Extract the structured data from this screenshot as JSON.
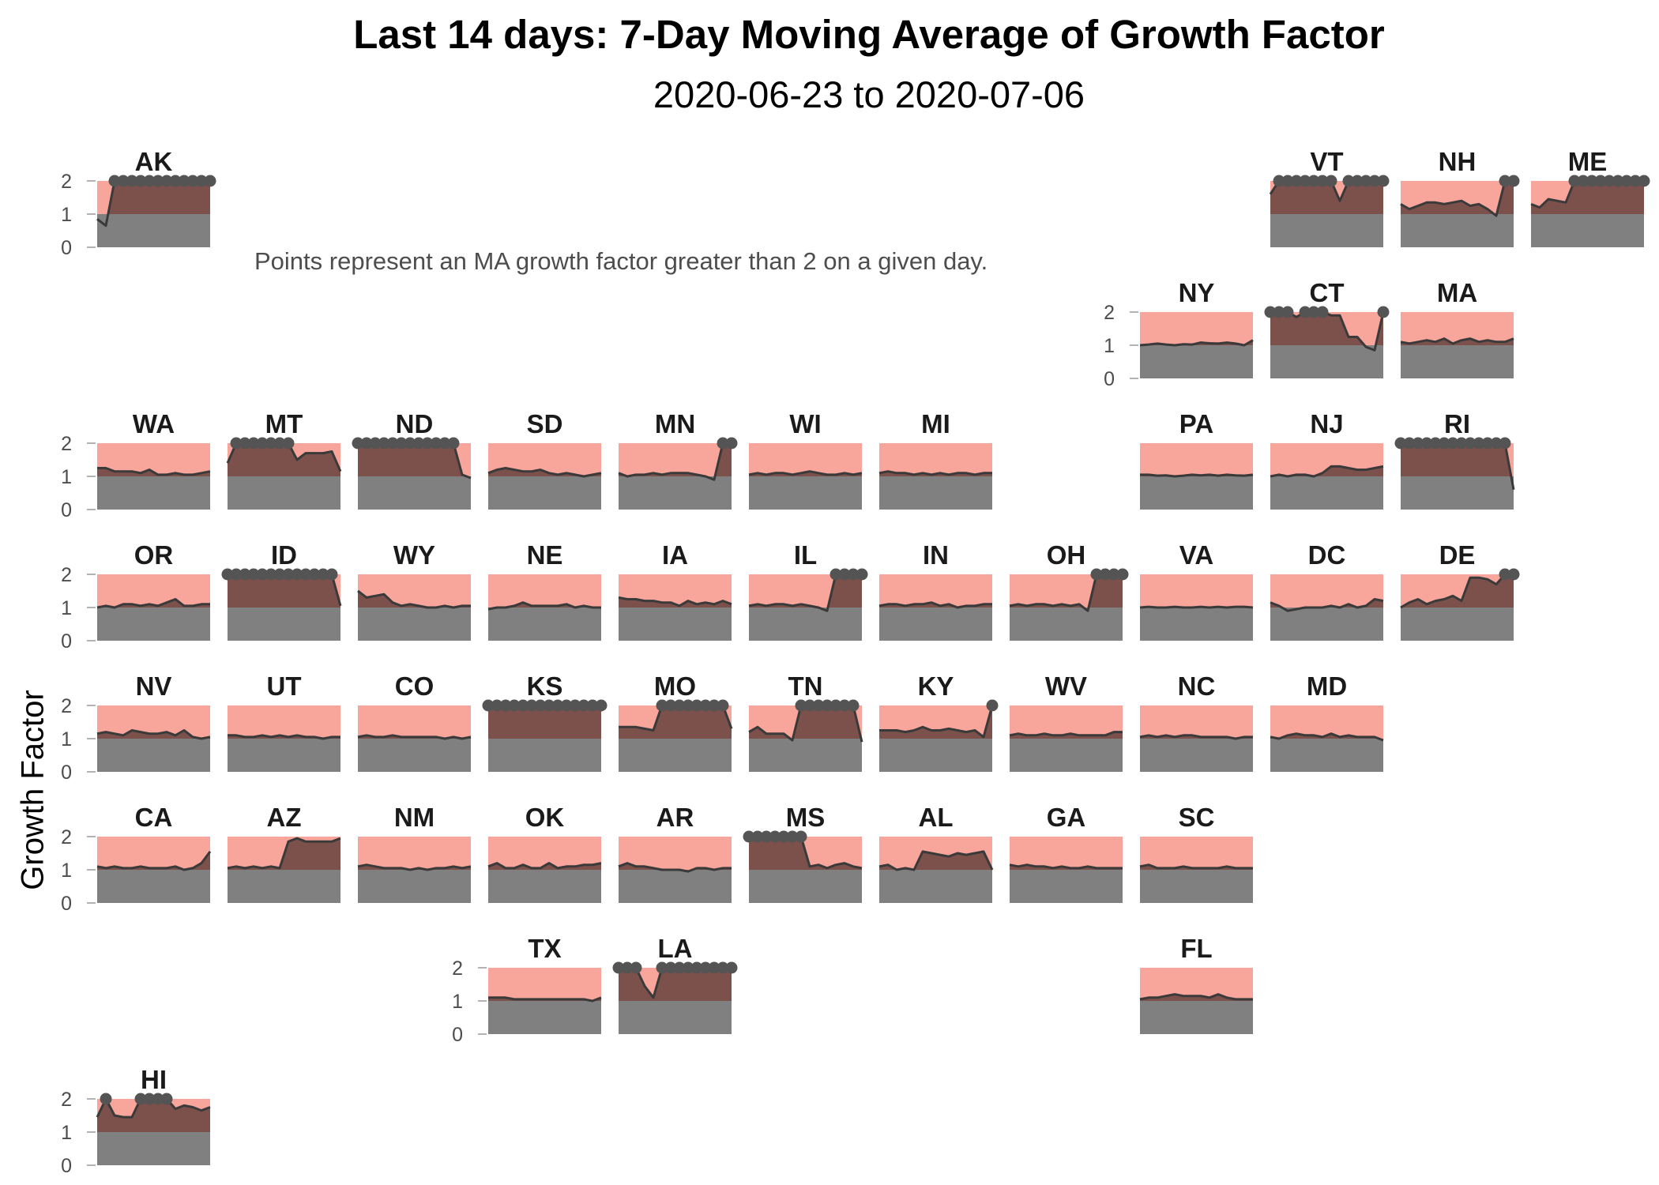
{
  "chart_data": {
    "type": "area",
    "title": "Last 14 days: 7-Day Moving Average of Growth Factor",
    "subtitle": "2020-06-23 to 2020-07-06",
    "note": "Points represent an MA growth factor greater than 2 on a given day.",
    "ylabel": "Growth Factor",
    "ylim": [
      0,
      2
    ],
    "yticks": [
      0,
      1,
      2
    ],
    "threshold": 1,
    "point_threshold": 2,
    "days": 14,
    "colors": {
      "above_threshold_band": "#f8a59b",
      "below_threshold_band": "#808080",
      "area_above_band": "#7c514c",
      "line": "#3a3a3a",
      "point": "#545454",
      "axis_text": "#4d4d4d"
    },
    "panels": [
      {
        "state": "AK",
        "row": 0,
        "col": 0,
        "values": [
          0.85,
          0.65,
          2,
          2,
          2,
          2,
          2,
          2,
          2,
          2,
          2,
          2,
          2,
          2
        ]
      },
      {
        "state": "VT",
        "row": 0,
        "col": 9,
        "values": [
          1.6,
          2,
          2,
          2,
          2,
          2,
          2,
          2,
          1.4,
          2,
          2,
          2,
          2,
          2
        ]
      },
      {
        "state": "NH",
        "row": 0,
        "col": 10,
        "values": [
          1.3,
          1.15,
          1.25,
          1.35,
          1.35,
          1.3,
          1.35,
          1.4,
          1.25,
          1.3,
          1.15,
          0.95,
          2,
          2
        ]
      },
      {
        "state": "ME",
        "row": 0,
        "col": 11,
        "values": [
          1.3,
          1.2,
          1.45,
          1.4,
          1.35,
          2,
          2,
          2,
          2,
          2,
          2,
          2,
          2,
          2
        ]
      },
      {
        "state": "NY",
        "row": 1,
        "col": 8,
        "values": [
          1.0,
          1.02,
          1.05,
          1.02,
          1.0,
          1.03,
          1.02,
          1.08,
          1.06,
          1.05,
          1.08,
          1.05,
          1.0,
          1.15
        ]
      },
      {
        "state": "CT",
        "row": 1,
        "col": 9,
        "values": [
          2,
          2,
          2,
          1.85,
          2,
          2,
          2,
          1.9,
          1.9,
          1.25,
          1.25,
          0.95,
          0.85,
          2
        ]
      },
      {
        "state": "MA",
        "row": 1,
        "col": 10,
        "values": [
          1.1,
          1.05,
          1.1,
          1.15,
          1.1,
          1.2,
          1.05,
          1.15,
          1.2,
          1.1,
          1.15,
          1.1,
          1.1,
          1.2
        ]
      },
      {
        "state": "WA",
        "row": 2,
        "col": 0,
        "values": [
          1.25,
          1.25,
          1.15,
          1.15,
          1.15,
          1.1,
          1.2,
          1.05,
          1.05,
          1.1,
          1.05,
          1.05,
          1.1,
          1.15
        ]
      },
      {
        "state": "MT",
        "row": 2,
        "col": 1,
        "values": [
          1.4,
          2,
          2,
          2,
          2,
          2,
          2,
          2,
          1.5,
          1.7,
          1.7,
          1.7,
          1.75,
          1.15
        ]
      },
      {
        "state": "ND",
        "row": 2,
        "col": 2,
        "values": [
          2,
          2,
          2,
          2,
          2,
          2,
          2,
          2,
          2,
          2,
          2,
          2,
          1.05,
          0.95
        ]
      },
      {
        "state": "SD",
        "row": 2,
        "col": 3,
        "values": [
          1.1,
          1.2,
          1.25,
          1.2,
          1.15,
          1.15,
          1.2,
          1.1,
          1.05,
          1.1,
          1.05,
          1.0,
          1.05,
          1.1
        ]
      },
      {
        "state": "MN",
        "row": 2,
        "col": 4,
        "values": [
          1.1,
          1.0,
          1.05,
          1.05,
          1.1,
          1.05,
          1.1,
          1.1,
          1.1,
          1.05,
          1.0,
          0.9,
          2,
          2
        ]
      },
      {
        "state": "WI",
        "row": 2,
        "col": 5,
        "values": [
          1.05,
          1.1,
          1.05,
          1.1,
          1.1,
          1.05,
          1.1,
          1.15,
          1.1,
          1.05,
          1.05,
          1.1,
          1.05,
          1.1
        ]
      },
      {
        "state": "MI",
        "row": 2,
        "col": 6,
        "values": [
          1.1,
          1.15,
          1.1,
          1.1,
          1.05,
          1.1,
          1.05,
          1.1,
          1.05,
          1.1,
          1.1,
          1.05,
          1.1,
          1.1
        ]
      },
      {
        "state": "PA",
        "row": 2,
        "col": 8,
        "values": [
          1.05,
          1.05,
          1.02,
          1.03,
          1.0,
          1.02,
          1.05,
          1.03,
          1.05,
          1.02,
          1.05,
          1.03,
          1.02,
          1.05
        ]
      },
      {
        "state": "NJ",
        "row": 2,
        "col": 9,
        "values": [
          1.0,
          1.05,
          1.0,
          1.05,
          1.05,
          1.0,
          1.1,
          1.3,
          1.3,
          1.25,
          1.2,
          1.2,
          1.25,
          1.3
        ]
      },
      {
        "state": "RI",
        "row": 2,
        "col": 10,
        "values": [
          2,
          2,
          2,
          2,
          2,
          2,
          2,
          2,
          2,
          2,
          2,
          2,
          2,
          0.6
        ]
      },
      {
        "state": "OR",
        "row": 3,
        "col": 0,
        "values": [
          1.0,
          1.05,
          1.0,
          1.1,
          1.1,
          1.05,
          1.1,
          1.05,
          1.15,
          1.25,
          1.05,
          1.05,
          1.1,
          1.1
        ]
      },
      {
        "state": "ID",
        "row": 3,
        "col": 1,
        "values": [
          2,
          2,
          2,
          2,
          2,
          2,
          2,
          2,
          2,
          2,
          2,
          2,
          2,
          1.05
        ]
      },
      {
        "state": "WY",
        "row": 3,
        "col": 2,
        "values": [
          1.5,
          1.3,
          1.35,
          1.4,
          1.15,
          1.05,
          1.1,
          1.05,
          1.0,
          1.0,
          1.05,
          1.0,
          1.05,
          1.05
        ]
      },
      {
        "state": "NE",
        "row": 3,
        "col": 3,
        "values": [
          0.95,
          1.0,
          1.0,
          1.05,
          1.15,
          1.05,
          1.05,
          1.05,
          1.05,
          1.1,
          1.0,
          1.05,
          1.0,
          1.0
        ]
      },
      {
        "state": "IA",
        "row": 3,
        "col": 4,
        "values": [
          1.3,
          1.25,
          1.25,
          1.2,
          1.2,
          1.15,
          1.15,
          1.05,
          1.2,
          1.1,
          1.15,
          1.1,
          1.2,
          1.1
        ]
      },
      {
        "state": "IL",
        "row": 3,
        "col": 5,
        "values": [
          1.05,
          1.1,
          1.05,
          1.1,
          1.1,
          1.05,
          1.1,
          1.05,
          1.0,
          0.9,
          2,
          2,
          2,
          2
        ]
      },
      {
        "state": "IN",
        "row": 3,
        "col": 6,
        "values": [
          1.05,
          1.1,
          1.1,
          1.05,
          1.1,
          1.1,
          1.15,
          1.05,
          1.1,
          1.0,
          1.05,
          1.05,
          1.1,
          1.1
        ]
      },
      {
        "state": "OH",
        "row": 3,
        "col": 7,
        "values": [
          1.05,
          1.1,
          1.05,
          1.1,
          1.1,
          1.05,
          1.1,
          1.05,
          1.1,
          0.9,
          2,
          2,
          2,
          2
        ]
      },
      {
        "state": "VA",
        "row": 3,
        "col": 8,
        "values": [
          1.0,
          1.02,
          1.0,
          1.0,
          1.02,
          1.0,
          1.0,
          1.02,
          1.0,
          1.02,
          1.0,
          1.02,
          1.02,
          1.0
        ]
      },
      {
        "state": "DC",
        "row": 3,
        "col": 9,
        "values": [
          1.15,
          1.05,
          0.9,
          0.95,
          1.0,
          1.0,
          1.0,
          1.05,
          1.0,
          1.1,
          1.0,
          1.05,
          1.25,
          1.2
        ]
      },
      {
        "state": "DE",
        "row": 3,
        "col": 10,
        "values": [
          1.0,
          1.15,
          1.25,
          1.1,
          1.2,
          1.25,
          1.35,
          1.2,
          1.9,
          1.9,
          1.85,
          1.7,
          2,
          2
        ]
      },
      {
        "state": "NV",
        "row": 4,
        "col": 0,
        "values": [
          1.15,
          1.2,
          1.15,
          1.1,
          1.25,
          1.2,
          1.15,
          1.15,
          1.2,
          1.1,
          1.25,
          1.05,
          1.0,
          1.05
        ]
      },
      {
        "state": "UT",
        "row": 4,
        "col": 1,
        "values": [
          1.1,
          1.1,
          1.05,
          1.05,
          1.1,
          1.05,
          1.1,
          1.05,
          1.1,
          1.05,
          1.05,
          1.0,
          1.05,
          1.05
        ]
      },
      {
        "state": "CO",
        "row": 4,
        "col": 2,
        "values": [
          1.05,
          1.1,
          1.05,
          1.05,
          1.1,
          1.05,
          1.05,
          1.05,
          1.05,
          1.05,
          1.0,
          1.05,
          1.0,
          1.05
        ]
      },
      {
        "state": "KS",
        "row": 4,
        "col": 3,
        "values": [
          2,
          2,
          2,
          2,
          2,
          2,
          2,
          2,
          2,
          2,
          2,
          2,
          2,
          2
        ]
      },
      {
        "state": "MO",
        "row": 4,
        "col": 4,
        "values": [
          1.35,
          1.35,
          1.35,
          1.3,
          1.25,
          2,
          2,
          2,
          2,
          2,
          2,
          2,
          2,
          1.3
        ]
      },
      {
        "state": "TN",
        "row": 4,
        "col": 5,
        "values": [
          1.2,
          1.35,
          1.15,
          1.15,
          1.15,
          0.95,
          2,
          2,
          2,
          2,
          2,
          2,
          2,
          0.9
        ]
      },
      {
        "state": "KY",
        "row": 4,
        "col": 6,
        "values": [
          1.25,
          1.25,
          1.25,
          1.2,
          1.25,
          1.35,
          1.25,
          1.25,
          1.3,
          1.25,
          1.2,
          1.25,
          1.05,
          2
        ]
      },
      {
        "state": "WV",
        "row": 4,
        "col": 7,
        "values": [
          1.1,
          1.15,
          1.1,
          1.1,
          1.15,
          1.1,
          1.1,
          1.15,
          1.1,
          1.1,
          1.1,
          1.1,
          1.2,
          1.2
        ]
      },
      {
        "state": "NC",
        "row": 4,
        "col": 8,
        "values": [
          1.05,
          1.1,
          1.05,
          1.1,
          1.05,
          1.1,
          1.1,
          1.05,
          1.05,
          1.05,
          1.05,
          1.0,
          1.05,
          1.05
        ]
      },
      {
        "state": "MD",
        "row": 4,
        "col": 9,
        "values": [
          1.05,
          1.0,
          1.1,
          1.15,
          1.1,
          1.1,
          1.05,
          1.15,
          1.05,
          1.1,
          1.05,
          1.05,
          1.05,
          0.95
        ]
      },
      {
        "state": "CA",
        "row": 5,
        "col": 0,
        "values": [
          1.1,
          1.05,
          1.1,
          1.05,
          1.05,
          1.1,
          1.05,
          1.05,
          1.05,
          1.1,
          1.0,
          1.05,
          1.2,
          1.55
        ]
      },
      {
        "state": "AZ",
        "row": 5,
        "col": 1,
        "values": [
          1.05,
          1.1,
          1.05,
          1.1,
          1.05,
          1.1,
          1.05,
          1.85,
          1.95,
          1.85,
          1.85,
          1.85,
          1.85,
          1.95
        ]
      },
      {
        "state": "NM",
        "row": 5,
        "col": 2,
        "values": [
          1.1,
          1.15,
          1.1,
          1.05,
          1.05,
          1.05,
          1.0,
          1.05,
          1.0,
          1.05,
          1.05,
          1.1,
          1.05,
          1.1
        ]
      },
      {
        "state": "OK",
        "row": 5,
        "col": 3,
        "values": [
          1.1,
          1.2,
          1.05,
          1.05,
          1.15,
          1.05,
          1.05,
          1.2,
          1.05,
          1.1,
          1.1,
          1.15,
          1.15,
          1.2
        ]
      },
      {
        "state": "AR",
        "row": 5,
        "col": 4,
        "values": [
          1.1,
          1.2,
          1.1,
          1.1,
          1.05,
          1.0,
          1.0,
          1.0,
          0.95,
          1.05,
          1.05,
          1.0,
          1.05,
          1.05
        ]
      },
      {
        "state": "MS",
        "row": 5,
        "col": 5,
        "values": [
          2,
          2,
          2,
          2,
          2,
          2,
          2,
          1.1,
          1.15,
          1.05,
          1.15,
          1.2,
          1.1,
          1.05
        ]
      },
      {
        "state": "AL",
        "row": 5,
        "col": 6,
        "values": [
          1.1,
          1.15,
          1.0,
          1.05,
          1.0,
          1.55,
          1.5,
          1.45,
          1.4,
          1.5,
          1.45,
          1.5,
          1.55,
          1.0
        ]
      },
      {
        "state": "GA",
        "row": 5,
        "col": 7,
        "values": [
          1.15,
          1.1,
          1.15,
          1.1,
          1.1,
          1.05,
          1.1,
          1.05,
          1.05,
          1.1,
          1.05,
          1.05,
          1.05,
          1.05
        ]
      },
      {
        "state": "SC",
        "row": 5,
        "col": 8,
        "values": [
          1.1,
          1.15,
          1.05,
          1.05,
          1.05,
          1.1,
          1.05,
          1.05,
          1.05,
          1.05,
          1.1,
          1.05,
          1.05,
          1.05
        ]
      },
      {
        "state": "TX",
        "row": 6,
        "col": 3,
        "values": [
          1.1,
          1.1,
          1.1,
          1.05,
          1.05,
          1.05,
          1.05,
          1.05,
          1.05,
          1.05,
          1.05,
          1.05,
          1.0,
          1.1
        ]
      },
      {
        "state": "LA",
        "row": 6,
        "col": 4,
        "values": [
          2,
          2,
          2,
          1.45,
          1.1,
          2,
          2,
          2,
          2,
          2,
          2,
          2,
          2,
          2
        ]
      },
      {
        "state": "FL",
        "row": 6,
        "col": 8,
        "values": [
          1.05,
          1.1,
          1.1,
          1.15,
          1.2,
          1.15,
          1.15,
          1.15,
          1.1,
          1.2,
          1.1,
          1.05,
          1.05,
          1.05
        ]
      },
      {
        "state": "HI",
        "row": 7,
        "col": 0,
        "values": [
          1.45,
          2,
          1.5,
          1.45,
          1.45,
          2,
          2,
          2,
          2,
          1.7,
          1.8,
          1.75,
          1.65,
          1.75
        ]
      }
    ]
  }
}
